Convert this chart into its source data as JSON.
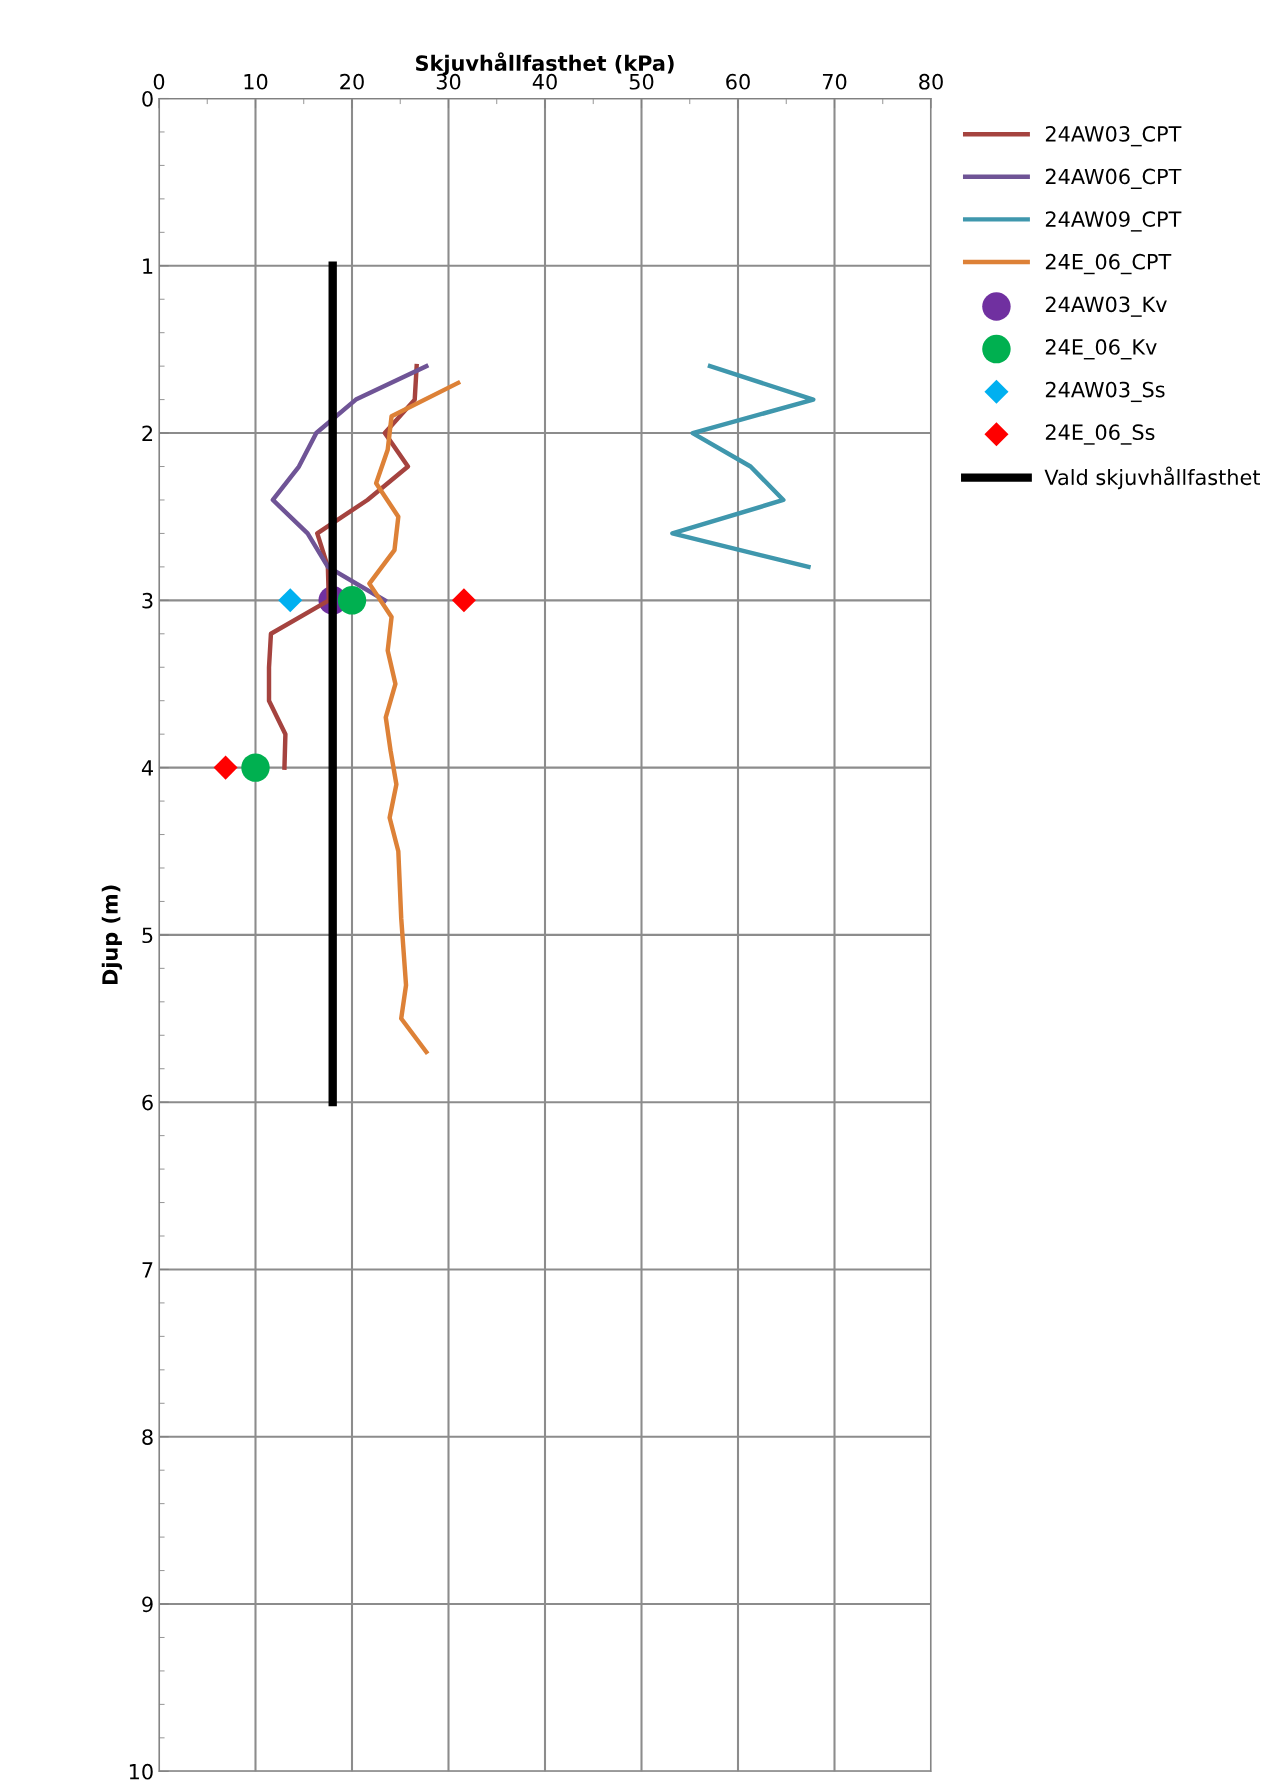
{
  "chart_data": {
    "type": "line",
    "xlabel": "Skjuvhållfasthet (kPa)",
    "ylabel": "Djup (m)",
    "xlim": [
      0,
      80
    ],
    "xticks": [
      0,
      10,
      20,
      30,
      40,
      50,
      60,
      70,
      80
    ],
    "ylim": [
      10,
      0
    ],
    "yticks": [
      0,
      1,
      2,
      3,
      4,
      5,
      6,
      7,
      8,
      9,
      10
    ],
    "grid": true,
    "legend": "top right",
    "marker": "none",
    "line_style": "solid",
    "series": [
      {
        "name": "24AW03_CPT",
        "color": "#a5433f",
        "x": [
          26.7,
          26.5,
          23.4,
          25.8,
          21.6,
          16.4,
          17.5,
          17.6,
          11.6,
          11.4,
          11.4,
          13.1,
          13.0
        ],
        "values": [
          1.6,
          1.8,
          2.0,
          2.2,
          2.4,
          2.6,
          2.8,
          3.0,
          3.2,
          3.4,
          3.6,
          3.8,
          4.0
        ]
      },
      {
        "name": "24AW06_CPT",
        "color": "#6f5496",
        "x": [
          27.7,
          20.4,
          16.3,
          14.5,
          11.8,
          15.4,
          17.5,
          23.4
        ],
        "values": [
          1.6,
          1.8,
          2.0,
          2.2,
          2.4,
          2.6,
          2.8,
          3.0
        ]
      },
      {
        "name": "24AW09_CPT",
        "color": "#3f97ad",
        "x": [
          57.1,
          67.8,
          55.3,
          61.3,
          64.7,
          53.2,
          67.3
        ],
        "values": [
          1.6,
          1.8,
          2.0,
          2.2,
          2.4,
          2.6,
          2.8
        ]
      },
      {
        "name": "24E_06_CPT",
        "color": "#dd8137",
        "x": [
          31.0,
          24.1,
          23.7,
          22.5,
          24.8,
          24.4,
          21.8,
          24.1,
          23.7,
          24.5,
          23.5,
          24.0,
          24.6,
          23.9,
          24.8,
          25.1,
          25.6,
          25.1,
          27.7
        ],
        "values": [
          1.7,
          1.9,
          2.1,
          2.3,
          2.5,
          2.7,
          2.9,
          3.1,
          3.3,
          3.5,
          3.7,
          3.9,
          4.1,
          4.3,
          4.5,
          4.9,
          5.3,
          5.5,
          5.7
        ]
      },
      {
        "name": "24AW03_Kv",
        "type": "scatter",
        "marker": "circle",
        "color": "#7030a0",
        "x": [
          18.0
        ],
        "values": [
          3.0
        ]
      },
      {
        "name": "24E_06_Kv",
        "type": "scatter",
        "marker": "circle",
        "color": "#00b050",
        "x": [
          20.0,
          10.0
        ],
        "values": [
          3.0,
          4.0
        ]
      },
      {
        "name": "24AW03_Ss",
        "type": "scatter",
        "marker": "diamond",
        "color": "#00b0f0",
        "x": [
          13.6
        ],
        "values": [
          3.0
        ]
      },
      {
        "name": "24E_06_Ss",
        "type": "scatter",
        "marker": "diamond",
        "color": "#ff0000",
        "x": [
          31.6,
          6.9
        ],
        "values": [
          3.0,
          4.0
        ]
      },
      {
        "name": "Vald skjuvhållfasthet",
        "color": "#000000",
        "x": [
          18.0,
          18.0
        ],
        "values": [
          1.0,
          6.0
        ]
      }
    ]
  }
}
